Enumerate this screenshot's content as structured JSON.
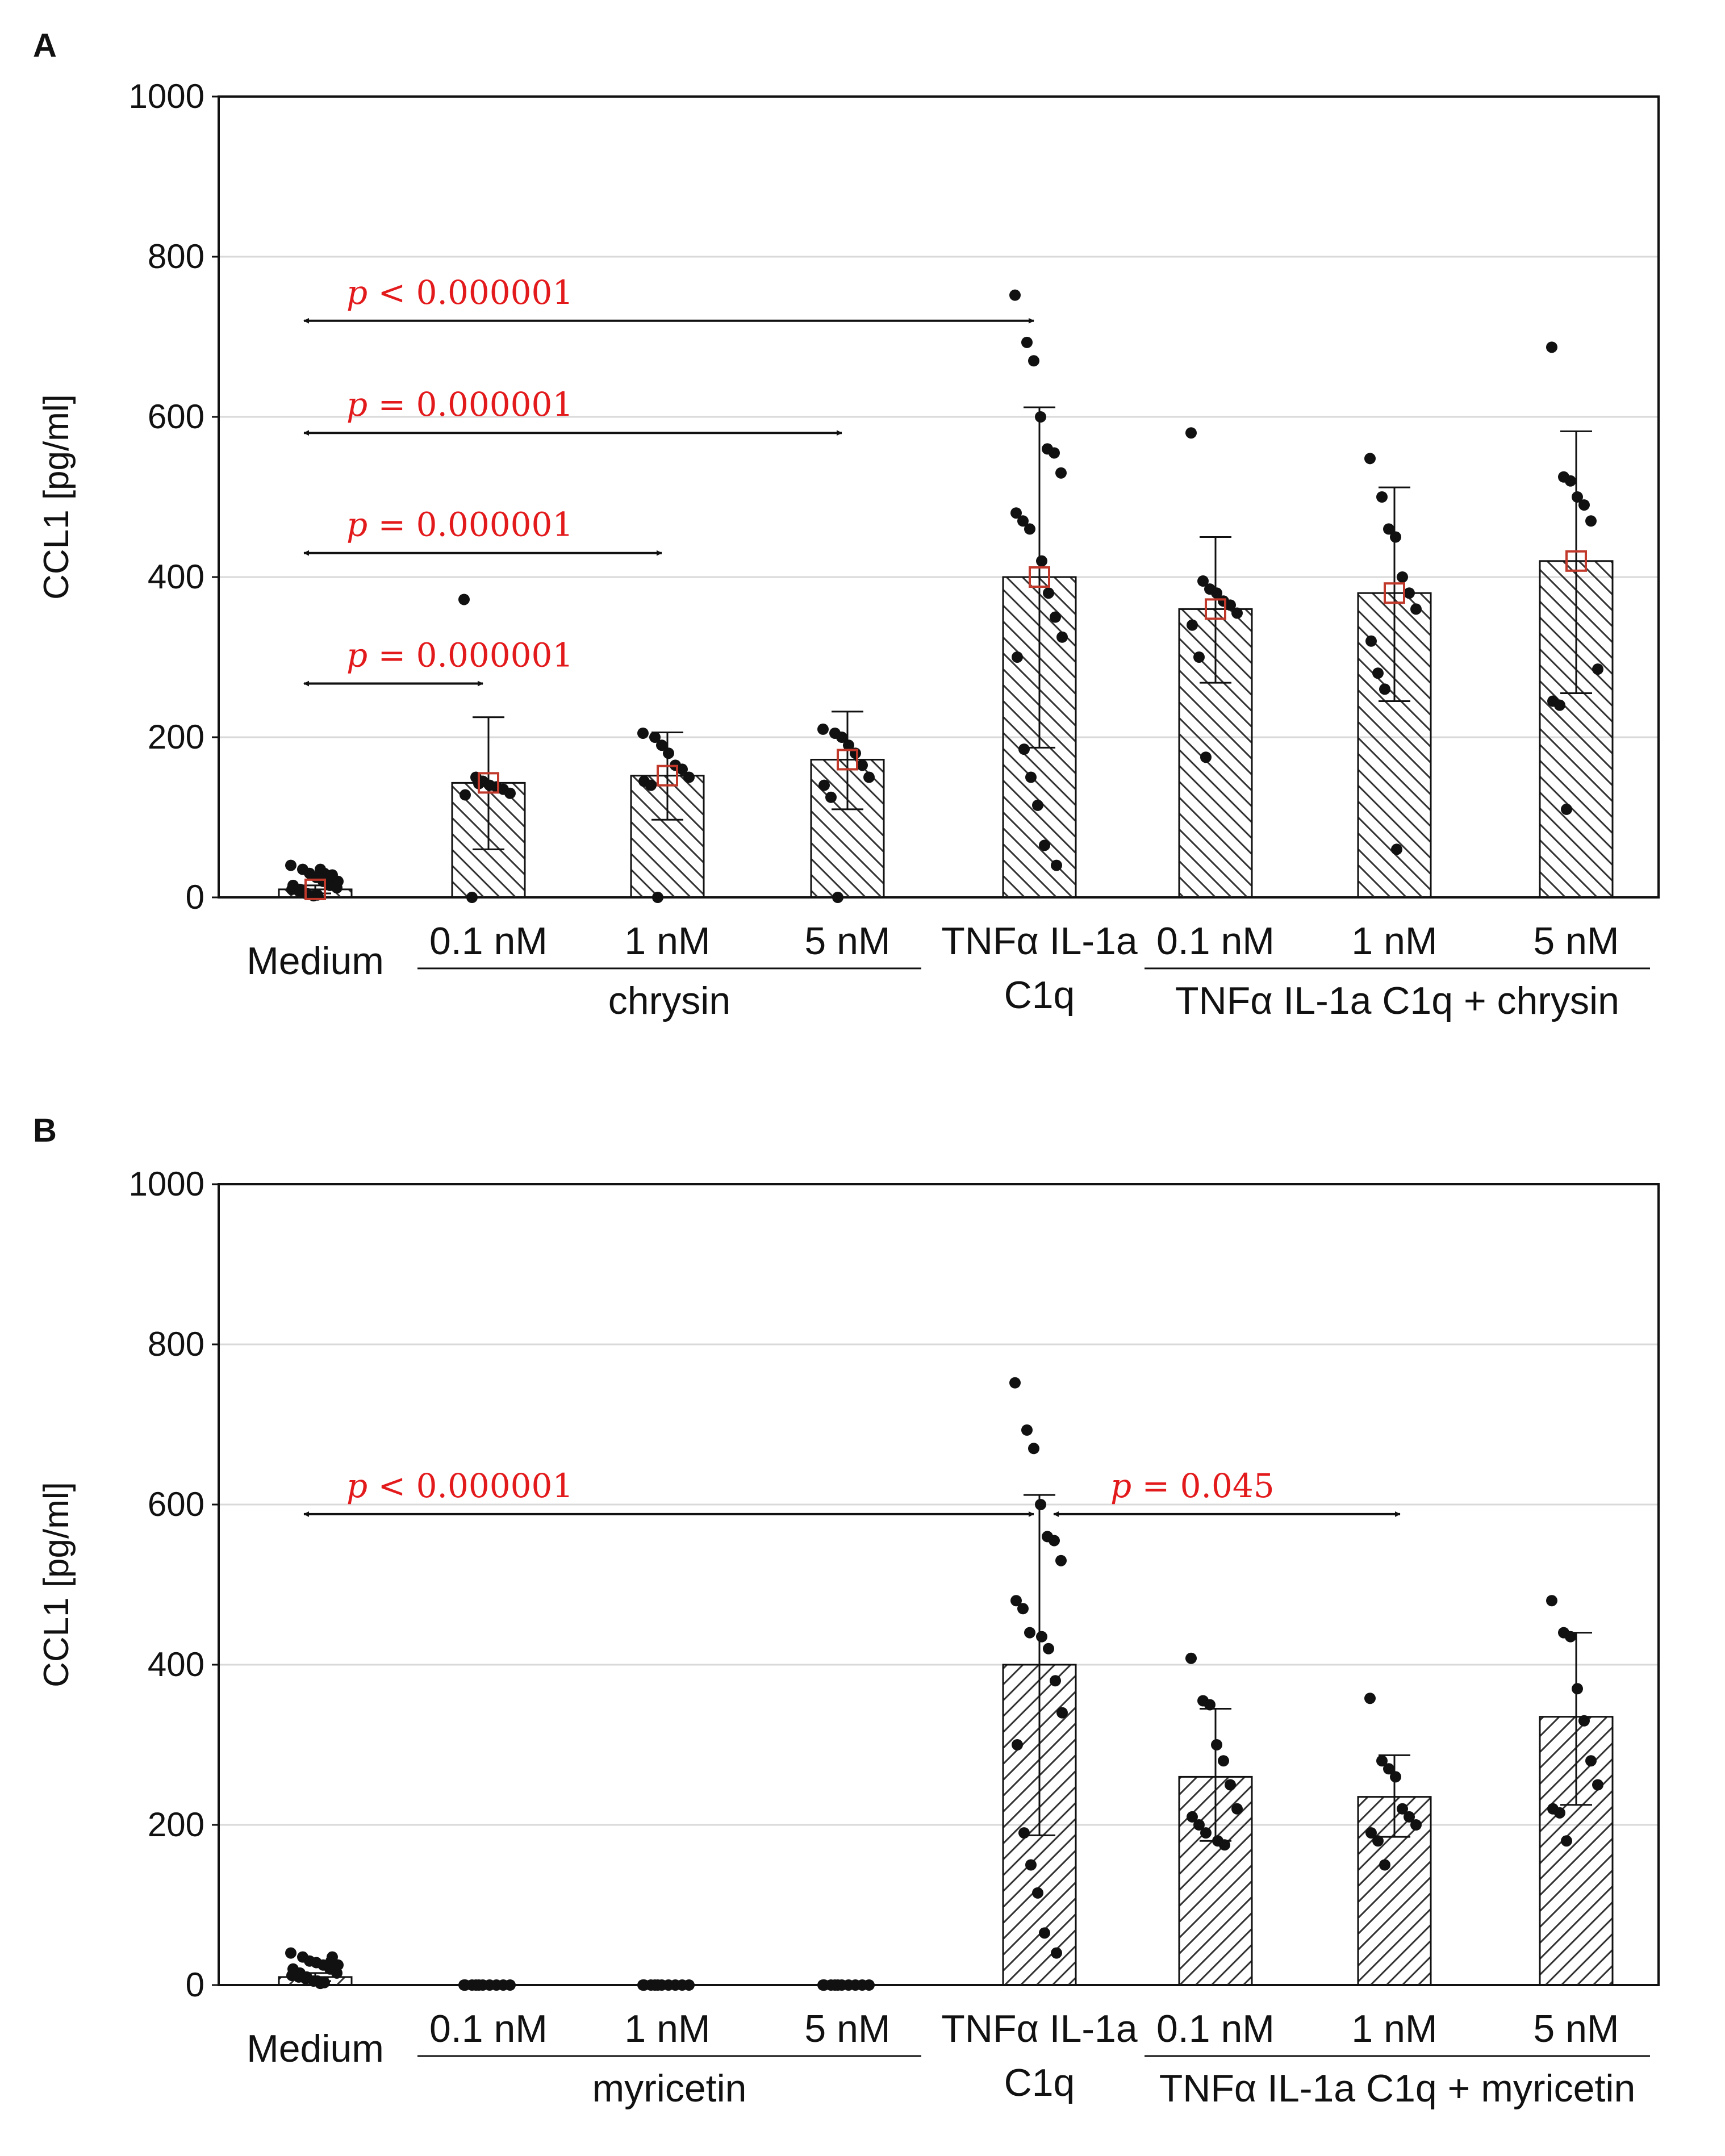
{
  "chart_data": [
    {
      "panel": "A",
      "type": "bar",
      "ylabel": "CCL1 [pg/ml]",
      "ylim": [
        0,
        1000
      ],
      "yticks": [
        0,
        200,
        400,
        600,
        800,
        1000
      ],
      "grid": true,
      "hatch": "backslash",
      "mean_marker": true,
      "categories": [
        {
          "lines": [
            "Medium"
          ]
        },
        {
          "lines": [
            "0.1 nM"
          ]
        },
        {
          "lines": [
            "1 nM"
          ]
        },
        {
          "lines": [
            "5 nM"
          ]
        },
        {
          "lines": [
            "TNFα IL-1a",
            "C1q"
          ]
        },
        {
          "lines": [
            "0.1 nM"
          ]
        },
        {
          "lines": [
            "1 nM"
          ]
        },
        {
          "lines": [
            "5 nM"
          ]
        }
      ],
      "groups": [
        {
          "label": "chrysin",
          "from": 1,
          "to": 3
        },
        {
          "label": "TNFα IL-1a C1q + chrysin",
          "from": 5,
          "to": 7
        }
      ],
      "values": [
        10,
        143,
        152,
        172,
        400,
        360,
        380,
        420
      ],
      "error": [
        [
          5,
          15
        ],
        [
          60,
          225
        ],
        [
          97,
          206
        ],
        [
          110,
          232
        ],
        [
          187,
          612
        ],
        [
          268,
          450
        ],
        [
          245,
          512
        ],
        [
          255,
          582
        ]
      ],
      "points": [
        [
          40,
          35,
          30,
          25,
          20,
          15,
          12,
          10,
          8,
          5,
          3,
          30,
          25,
          20,
          15,
          10,
          5,
          2,
          35,
          28
        ],
        [
          372,
          150,
          145,
          140,
          138,
          135,
          130,
          128,
          0,
          142
        ],
        [
          205,
          200,
          190,
          180,
          165,
          160,
          150,
          145,
          140,
          0
        ],
        [
          210,
          205,
          200,
          190,
          180,
          165,
          150,
          140,
          125,
          0
        ],
        [
          752,
          693,
          670,
          600,
          560,
          555,
          530,
          480,
          470,
          460,
          420,
          380,
          350,
          325,
          300,
          185,
          150,
          115,
          65,
          40
        ],
        [
          580,
          395,
          385,
          380,
          370,
          365,
          355,
          340,
          300,
          175
        ],
        [
          548,
          500,
          460,
          450,
          400,
          380,
          360,
          320,
          280,
          260,
          60
        ],
        [
          687,
          525,
          520,
          500,
          490,
          470,
          285,
          245,
          240,
          110
        ]
      ],
      "comparisons": [
        {
          "from": 0,
          "to": 4,
          "y": 720,
          "label_p": "p",
          "label_rest": " < 0.000001"
        },
        {
          "from": 0,
          "to": 3,
          "y": 580,
          "label_p": "p",
          "label_rest": " = 0.000001"
        },
        {
          "from": 0,
          "to": 2,
          "y": 430,
          "label_p": "p",
          "label_rest": " = 0.000001"
        },
        {
          "from": 0,
          "to": 1,
          "y": 267,
          "label_p": "p",
          "label_rest": " = 0.000001"
        }
      ]
    },
    {
      "panel": "B",
      "type": "bar",
      "ylabel": "CCL1 [pg/ml]",
      "ylim": [
        0,
        1000
      ],
      "yticks": [
        0,
        200,
        400,
        600,
        800,
        1000
      ],
      "grid": true,
      "hatch": "slash",
      "mean_marker": false,
      "categories": [
        {
          "lines": [
            "Medium"
          ]
        },
        {
          "lines": [
            "0.1 nM"
          ]
        },
        {
          "lines": [
            "1 nM"
          ]
        },
        {
          "lines": [
            "5 nM"
          ]
        },
        {
          "lines": [
            "TNFα IL-1a",
            "C1q"
          ]
        },
        {
          "lines": [
            "0.1 nM"
          ]
        },
        {
          "lines": [
            "1 nM"
          ]
        },
        {
          "lines": [
            "5 nM"
          ]
        }
      ],
      "groups": [
        {
          "label": "myricetin",
          "from": 1,
          "to": 3
        },
        {
          "label": "TNFα IL-1a C1q + myricetin",
          "from": 5,
          "to": 7
        }
      ],
      "values": [
        10,
        0,
        0,
        0,
        400,
        260,
        235,
        335
      ],
      "error": [
        [
          5,
          15
        ],
        [
          0,
          0
        ],
        [
          0,
          0
        ],
        [
          0,
          0
        ],
        [
          187,
          612
        ],
        [
          180,
          345
        ],
        [
          185,
          287
        ],
        [
          225,
          440
        ]
      ],
      "points": [
        [
          40,
          35,
          30,
          28,
          25,
          20,
          15,
          12,
          10,
          8,
          5,
          3,
          30,
          25,
          20,
          15,
          10,
          5,
          2,
          35
        ],
        [
          0,
          0,
          0,
          0,
          0,
          0,
          0,
          0,
          0,
          0
        ],
        [
          0,
          0,
          0,
          0,
          0,
          0,
          0,
          0,
          0,
          0
        ],
        [
          0,
          0,
          0,
          0,
          0,
          0,
          0,
          0,
          0,
          0
        ],
        [
          752,
          693,
          670,
          600,
          560,
          555,
          530,
          480,
          470,
          440,
          435,
          420,
          380,
          340,
          300,
          190,
          150,
          115,
          65,
          40
        ],
        [
          408,
          355,
          350,
          300,
          280,
          250,
          220,
          210,
          200,
          190,
          180,
          175
        ],
        [
          358,
          280,
          270,
          260,
          220,
          210,
          200,
          190,
          180,
          150
        ],
        [
          480,
          440,
          435,
          370,
          330,
          280,
          250,
          220,
          215,
          180
        ]
      ],
      "comparisons": [
        {
          "from": 0,
          "to": 4,
          "y": 588,
          "label_p": "p",
          "label_rest": " < 0.000001"
        },
        {
          "from": 4,
          "to": 6,
          "y": 588,
          "label_p": "p",
          "label_rest": " = 0.045"
        }
      ]
    }
  ]
}
